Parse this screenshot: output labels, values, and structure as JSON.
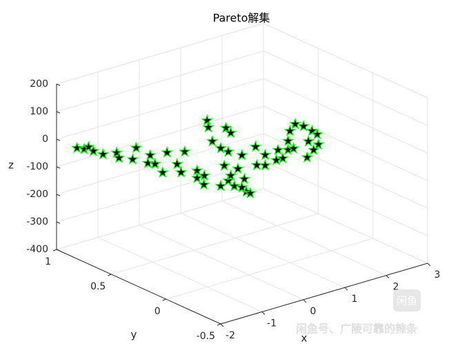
{
  "chart_data": {
    "type": "scatter3d",
    "title": "Pareto解集",
    "xlabel": "x",
    "ylabel": "y",
    "zlabel": "z",
    "xlim": [
      -2,
      3
    ],
    "ylim": [
      -0.5,
      1
    ],
    "zlim": [
      -400,
      200
    ],
    "xticks": [
      -2,
      -1,
      0,
      1,
      2,
      3
    ],
    "yticks": [
      -0.5,
      0,
      0.5,
      1
    ],
    "zticks": [
      -400,
      -300,
      -200,
      -100,
      0,
      100,
      200
    ],
    "grid": true,
    "marker": "star",
    "color": "#00ff00",
    "edge_color": "#000000",
    "x": [
      -1.85,
      -1.73,
      -1.65,
      -1.56,
      -1.38,
      -1.13,
      -1.1,
      -0.79,
      -0.85,
      -0.56,
      -0.53,
      -0.44,
      -0.23,
      -0.31,
      -0.04,
      0.03,
      0.09,
      0.31,
      0.31,
      0.46,
      0.45,
      0.5,
      0.53,
      0.6,
      0.75,
      0.85,
      0.94,
      0.88,
      0.81,
      0.75,
      0.88,
      0.94,
      1.0,
      1.06,
      1.13,
      1.19,
      1.21,
      1.28,
      1.13,
      1.38,
      1.41,
      1.56,
      1.56,
      1.75,
      1.79,
      1.88,
      1.98,
      2.06,
      2.1,
      2.25,
      2.31,
      2.34,
      2.4,
      2.5,
      2.53,
      2.44,
      2.0,
      1.98
    ],
    "y": [
      0.87,
      0.85,
      0.84,
      0.83,
      0.81,
      0.78,
      0.77,
      0.73,
      0.74,
      0.71,
      0.7,
      0.69,
      0.66,
      0.67,
      0.64,
      0.63,
      0.62,
      0.59,
      0.59,
      0.58,
      0.58,
      0.57,
      0.57,
      0.56,
      0.54,
      0.53,
      0.52,
      0.52,
      0.53,
      0.54,
      0.52,
      0.52,
      0.51,
      0.5,
      0.49,
      0.49,
      0.48,
      0.47,
      0.49,
      0.46,
      0.46,
      0.44,
      0.44,
      0.41,
      0.41,
      0.4,
      0.39,
      0.37,
      0.37,
      0.35,
      0.34,
      0.34,
      0.33,
      0.32,
      0.32,
      0.33,
      0.38,
      0.39
    ],
    "z": [
      -15,
      -21,
      -15,
      -32,
      -48,
      -48,
      -66,
      -36,
      -77,
      -98,
      -69,
      -103,
      -65,
      -136,
      -112,
      -143,
      -69,
      -142,
      -169,
      -165,
      -197,
      35,
      9,
      -43,
      -71,
      0,
      -20,
      -86,
      -135,
      -208,
      -191,
      -175,
      -214,
      -152,
      -104,
      -193,
      -238,
      -245,
      -221,
      -79,
      -147,
      -151,
      -113,
      -135,
      -100,
      -132,
      -104,
      -99,
      -12,
      -23,
      -137,
      -80,
      -43,
      -58,
      -96,
      -114,
      -35,
      -72
    ],
    "annotations": [
      "闲鱼号、广陵可靠的辣条",
      "闲鱼"
    ]
  }
}
